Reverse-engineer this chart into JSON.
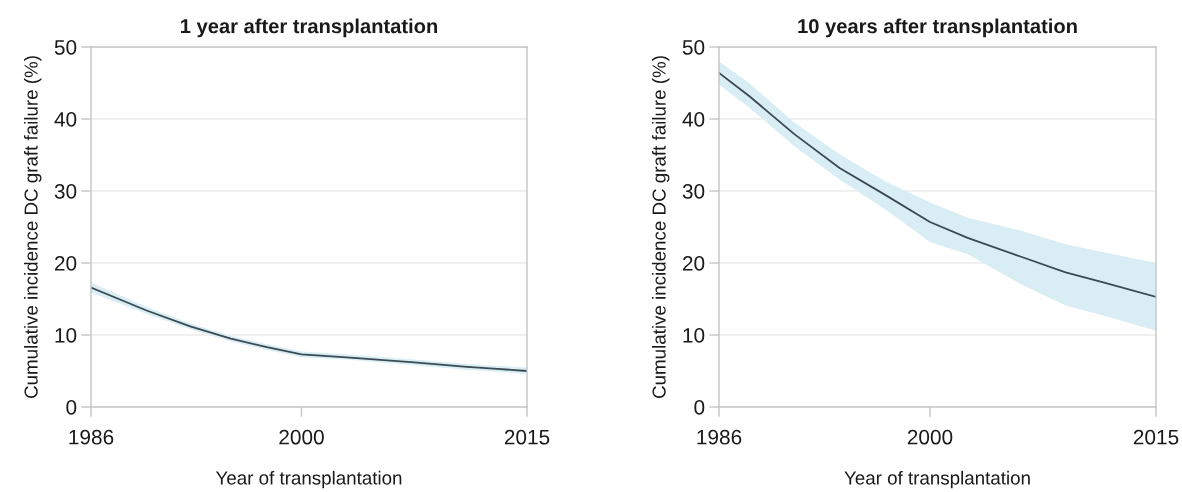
{
  "chart_data": [
    {
      "type": "line",
      "title": "1 year after transplantation",
      "xlabel": "Year of transplantation",
      "ylabel": "Cumulative incidence DC graft failure (%)",
      "x": [
        1986,
        1989.7,
        1992.6,
        1995.3,
        1997.7,
        2000,
        2003,
        2007.5,
        2010.8,
        2013,
        2015
      ],
      "series": [
        {
          "color": "#3b4a52",
          "values": [
            16.6,
            13.4,
            11.2,
            9.5,
            8.3,
            7.3,
            6.9,
            6.2,
            5.6,
            5.3,
            5.0
          ],
          "upper": [
            17.3,
            13.9,
            11.6,
            9.9,
            8.7,
            7.7,
            7.3,
            6.6,
            6.0,
            5.7,
            5.5
          ],
          "lower": [
            15.9,
            12.9,
            10.8,
            9.1,
            7.9,
            6.9,
            6.6,
            5.8,
            5.2,
            4.9,
            4.6
          ]
        }
      ],
      "xlim": [
        1986,
        2015
      ],
      "xticks": [
        1986,
        2000,
        2015
      ],
      "ylim": [
        0,
        50
      ],
      "yticks": [
        0,
        10,
        20,
        30,
        40,
        50
      ],
      "grid": "y"
    },
    {
      "type": "line",
      "title": "10 years after transplantation",
      "xlabel": "Year of transplantation",
      "ylabel": "Cumulative incidence DC graft failure (%)",
      "x": [
        1986,
        1988,
        1991,
        1994,
        1997,
        2000,
        2002.5,
        2006,
        2009,
        2011.5,
        2015
      ],
      "series": [
        {
          "color": "#3b4a52",
          "values": [
            46.4,
            43.2,
            37.9,
            33.2,
            29.5,
            25.7,
            23.5,
            20.9,
            18.7,
            17.3,
            15.3
          ],
          "upper": [
            48.0,
            45.0,
            39.5,
            35.1,
            31.4,
            28.4,
            26.3,
            24.5,
            22.6,
            21.5,
            20.0
          ],
          "lower": [
            44.8,
            41.6,
            36.2,
            31.6,
            27.5,
            22.9,
            21.2,
            17.1,
            14.1,
            12.7,
            10.6
          ]
        }
      ],
      "xlim": [
        1986,
        2015
      ],
      "xticks": [
        1986,
        2000,
        2015
      ],
      "ylim": [
        0,
        50
      ],
      "yticks": [
        0,
        10,
        20,
        30,
        40,
        50
      ],
      "grid": "y"
    }
  ]
}
